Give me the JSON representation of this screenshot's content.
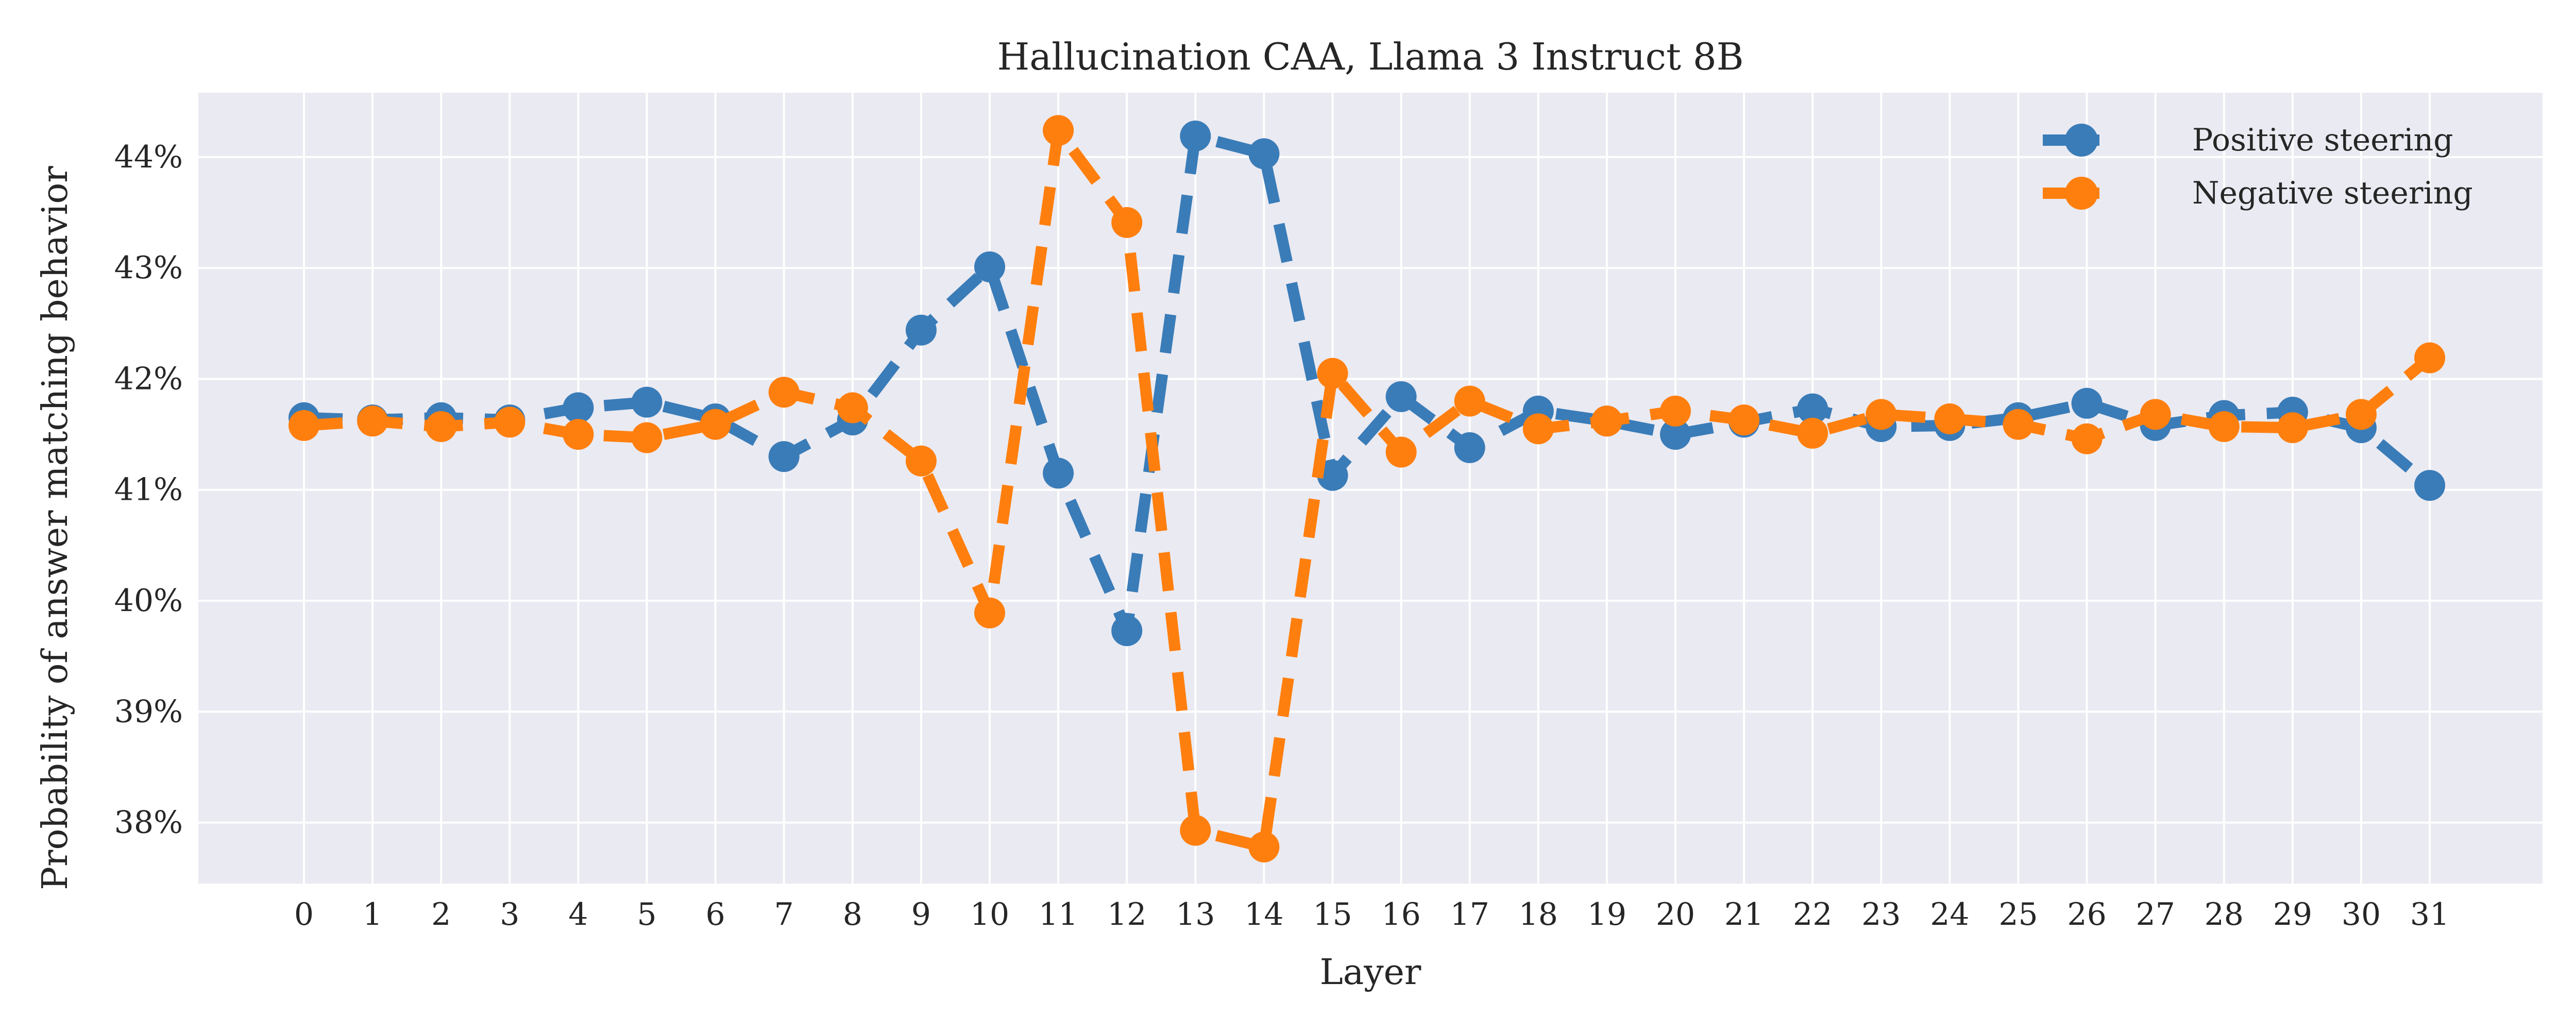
{
  "chart_data": {
    "type": "line",
    "title": "Hallucination CAA, Llama 3 Instruct 8B",
    "xlabel": "Layer",
    "ylabel": "Probability of answer matching behavior",
    "categories": [
      "0",
      "1",
      "2",
      "3",
      "4",
      "5",
      "6",
      "7",
      "8",
      "9",
      "10",
      "11",
      "12",
      "13",
      "14",
      "15",
      "16",
      "17",
      "18",
      "19",
      "20",
      "21",
      "22",
      "23",
      "24",
      "25",
      "26",
      "27",
      "28",
      "29",
      "30",
      "31"
    ],
    "ylim": [
      37.45,
      44.58
    ],
    "yticks": [
      "38%",
      "39%",
      "40%",
      "41%",
      "42%",
      "43%",
      "44%"
    ],
    "ytick_values": [
      38,
      39,
      40,
      41,
      42,
      43,
      44
    ],
    "grid": true,
    "legend_position": "top-right",
    "series": [
      {
        "name": "Positive steering",
        "color": "#3a7cb8",
        "values": [
          41.65,
          41.63,
          41.65,
          41.63,
          41.74,
          41.79,
          41.64,
          41.3,
          41.63,
          42.44,
          43.01,
          41.15,
          39.73,
          44.19,
          44.03,
          41.13,
          41.84,
          41.38,
          41.71,
          41.62,
          41.5,
          41.61,
          41.73,
          41.57,
          41.58,
          41.65,
          41.78,
          41.58,
          41.67,
          41.7,
          41.56,
          41.04
        ]
      },
      {
        "name": "Negative steering",
        "color": "#ff7f0e",
        "values": [
          41.58,
          41.62,
          41.57,
          41.61,
          41.5,
          41.47,
          41.59,
          41.88,
          41.74,
          41.26,
          39.89,
          44.24,
          43.41,
          37.93,
          37.78,
          42.05,
          41.34,
          41.8,
          41.55,
          41.62,
          41.71,
          41.63,
          41.51,
          41.68,
          41.64,
          41.59,
          41.46,
          41.68,
          41.57,
          41.56,
          41.68,
          42.19
        ]
      }
    ]
  }
}
